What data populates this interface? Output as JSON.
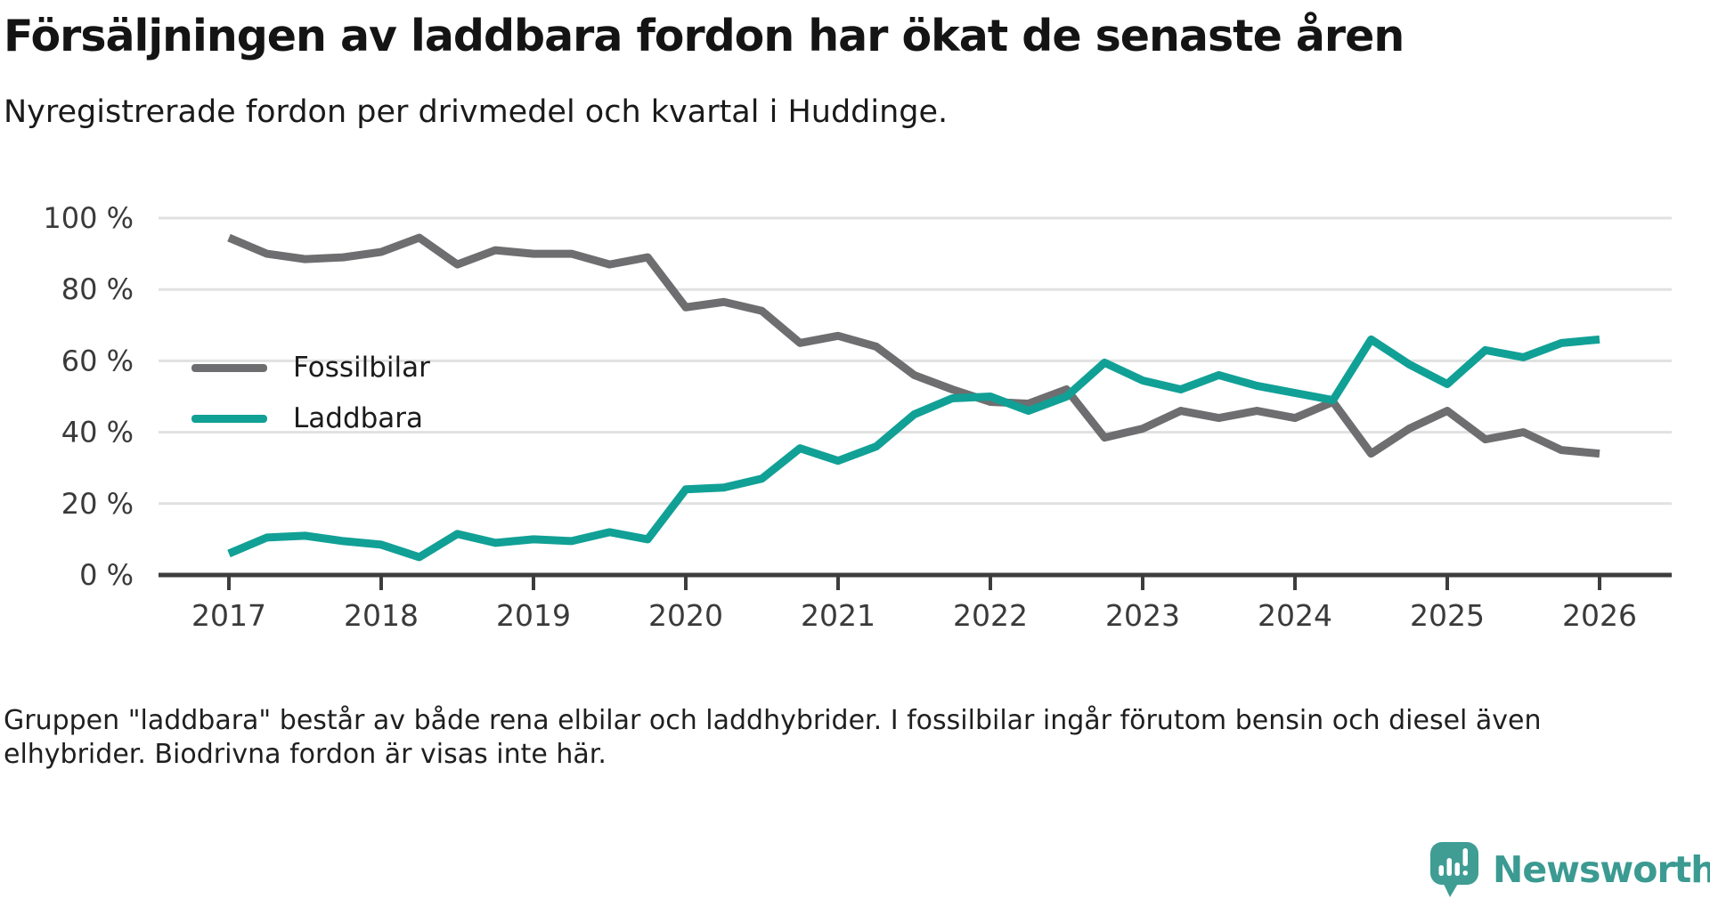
{
  "header": {
    "title": "Försäljningen av laddbara fordon har ökat de senaste åren",
    "subtitle": "Nyregistrerade fordon per drivmedel och kvartal i Huddinge."
  },
  "chart_data": {
    "type": "line",
    "title": "Nyregistrerade fordon per drivmedel och kvartal i Huddinge",
    "unit": "%",
    "ylim": [
      0,
      100
    ],
    "grid": "horizontal",
    "legend_position": "inside-upper-left",
    "x_tick_labels": [
      "2017",
      "2018",
      "2019",
      "2020",
      "2021",
      "2022",
      "2023",
      "2024",
      "2025",
      "2026"
    ],
    "y_ticks": [
      {
        "value": 0,
        "label": "0 %"
      },
      {
        "value": 20,
        "label": "20 %"
      },
      {
        "value": 40,
        "label": "40 %"
      },
      {
        "value": 60,
        "label": "60 %"
      },
      {
        "value": 80,
        "label": "80 %"
      },
      {
        "value": 100,
        "label": "100 %"
      }
    ],
    "x_quarters": [
      "2017 Q1",
      "2017 Q2",
      "2017 Q3",
      "2017 Q4",
      "2018 Q1",
      "2018 Q2",
      "2018 Q3",
      "2018 Q4",
      "2019 Q1",
      "2019 Q2",
      "2019 Q3",
      "2019 Q4",
      "2020 Q1",
      "2020 Q2",
      "2020 Q3",
      "2020 Q4",
      "2021 Q1",
      "2021 Q2",
      "2021 Q3",
      "2021 Q4",
      "2022 Q1",
      "2022 Q2",
      "2022 Q3",
      "2022 Q4",
      "2023 Q1",
      "2023 Q2",
      "2023 Q3",
      "2023 Q4",
      "2024 Q1",
      "2024 Q2",
      "2024 Q3",
      "2024 Q4",
      "2025 Q1",
      "2025 Q2",
      "2025 Q3",
      "2025 Q4",
      "2026 Q1"
    ],
    "series": [
      {
        "name": "Fossilbilar",
        "color": "#6e6e70",
        "values": [
          94.5,
          90,
          88.5,
          89,
          90.5,
          94.5,
          87,
          91,
          90,
          90,
          87,
          89,
          75,
          76.5,
          74,
          65,
          67,
          64,
          56,
          52,
          48.5,
          48,
          52,
          38.5,
          41,
          46,
          44,
          46,
          44,
          48.5,
          34,
          41,
          46,
          38,
          40,
          35,
          34
        ]
      },
      {
        "name": "Laddbara",
        "color": "#11a096",
        "values": [
          6,
          10.5,
          11,
          9.5,
          8.5,
          5,
          11.5,
          9,
          10,
          9.5,
          12,
          10,
          24,
          24.5,
          27,
          35.5,
          32,
          36,
          45,
          49.5,
          50,
          46,
          50,
          59.5,
          54.5,
          52,
          56,
          53,
          51,
          49,
          66,
          59,
          53.5,
          63,
          61,
          65,
          66
        ]
      }
    ]
  },
  "footnote": {
    "text": "Gruppen \"laddbara\" består av både rena elbilar och laddhybrider. I fossilbilar ingår förutom bensin och diesel även elhybrider. Biodrivna fordon är visas inte här."
  },
  "branding": {
    "name": "Newsworthy",
    "color": "#3b9a91"
  }
}
